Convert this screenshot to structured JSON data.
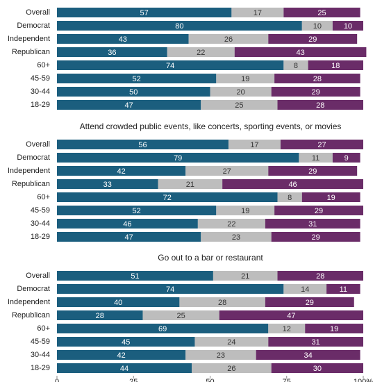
{
  "chart_data": [
    {
      "type": "stacked-bar-horizontal",
      "categories": [
        "Overall",
        "Democrat",
        "Independent",
        "Republican",
        "60+",
        "45-59",
        "30-44",
        "18-29"
      ],
      "series": [
        {
          "color": "#1b5e7e",
          "values": [
            57,
            80,
            43,
            36,
            74,
            52,
            50,
            47
          ]
        },
        {
          "color": "#bdbdbd",
          "values": [
            17,
            10,
            26,
            22,
            8,
            19,
            20,
            25
          ]
        },
        {
          "color": "#6a2c68",
          "values": [
            25,
            10,
            29,
            43,
            18,
            28,
            29,
            28
          ]
        }
      ],
      "xlim": [
        0,
        100
      ]
    },
    {
      "type": "stacked-bar-horizontal",
      "title": "Attend crowded public events, like concerts, sporting events, or movies",
      "categories": [
        "Overall",
        "Democrat",
        "Independent",
        "Republican",
        "60+",
        "45-59",
        "30-44",
        "18-29"
      ],
      "series": [
        {
          "color": "#1b5e7e",
          "values": [
            56,
            79,
            42,
            33,
            72,
            52,
            46,
            47
          ]
        },
        {
          "color": "#bdbdbd",
          "values": [
            17,
            11,
            27,
            21,
            8,
            19,
            22,
            23
          ]
        },
        {
          "color": "#6a2c68",
          "values": [
            27,
            9,
            29,
            46,
            19,
            29,
            31,
            29
          ]
        }
      ],
      "xlim": [
        0,
        100
      ]
    },
    {
      "type": "stacked-bar-horizontal",
      "title": "Go out to a bar or restaurant",
      "categories": [
        "Overall",
        "Democrat",
        "Independent",
        "Republican",
        "60+",
        "45-59",
        "30-44",
        "18-29"
      ],
      "series": [
        {
          "color": "#1b5e7e",
          "values": [
            51,
            74,
            40,
            28,
            69,
            45,
            42,
            44
          ]
        },
        {
          "color": "#bdbdbd",
          "values": [
            21,
            14,
            28,
            25,
            12,
            24,
            23,
            26
          ]
        },
        {
          "color": "#6a2c68",
          "values": [
            28,
            11,
            29,
            47,
            19,
            31,
            34,
            30
          ]
        }
      ],
      "xlim": [
        0,
        100
      ],
      "xticks": [
        0,
        25,
        50,
        75,
        {
          "value": 100,
          "label": "100%"
        }
      ]
    }
  ]
}
